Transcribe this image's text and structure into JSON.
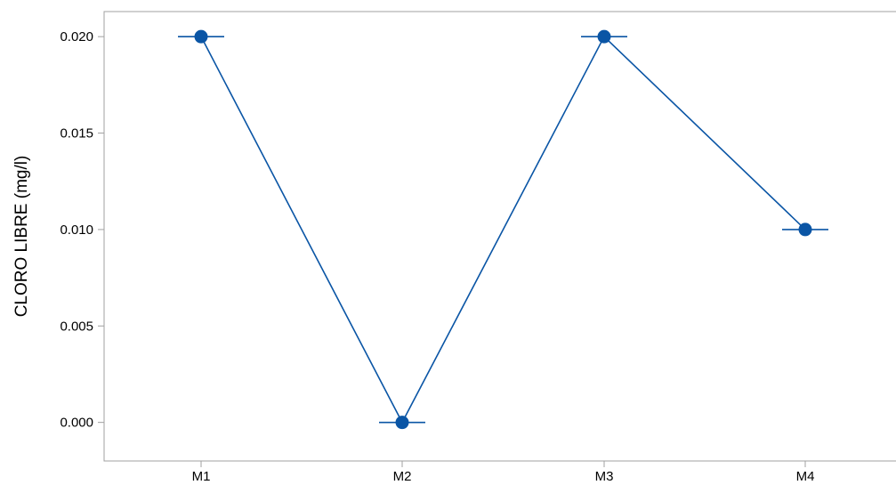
{
  "chart_data": {
    "type": "line",
    "categories": [
      "M1",
      "M2",
      "M3",
      "M4"
    ],
    "series": [
      {
        "values": [
          0.02,
          0.0,
          0.02,
          0.01
        ]
      }
    ],
    "title": "",
    "xlabel": "",
    "ylabel": "CLORO LIBRE (mg/l)",
    "ylim": [
      -0.002,
      0.0213
    ],
    "yticks": [
      0.0,
      0.005,
      0.01,
      0.015,
      0.02
    ],
    "ytick_labels": [
      "0.000",
      "0.005",
      "0.010",
      "0.015",
      "0.020"
    ],
    "grid": false,
    "legend": "none",
    "error_bars": "horizontal-caps",
    "colors": {
      "series": "#0a55a5",
      "frame": "#a0a0a0",
      "axis_text": "#000000"
    }
  }
}
